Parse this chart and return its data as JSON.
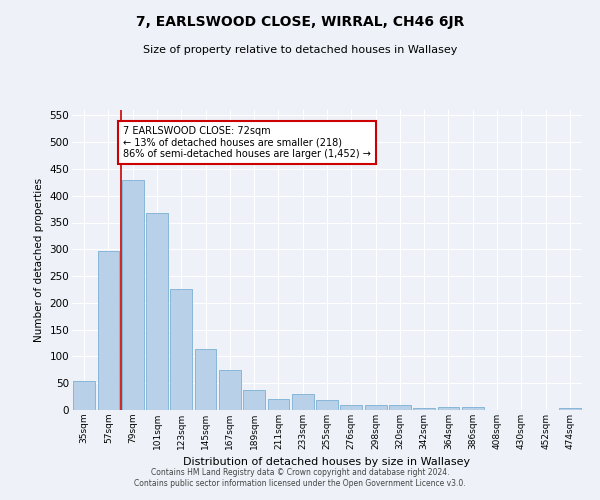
{
  "title": "7, EARLSWOOD CLOSE, WIRRAL, CH46 6JR",
  "subtitle": "Size of property relative to detached houses in Wallasey",
  "xlabel": "Distribution of detached houses by size in Wallasey",
  "ylabel": "Number of detached properties",
  "bar_color": "#b8d0e8",
  "bar_edge_color": "#7aafd4",
  "background_color": "#eef2f8",
  "grid_color": "#ffffff",
  "categories": [
    "35sqm",
    "57sqm",
    "79sqm",
    "101sqm",
    "123sqm",
    "145sqm",
    "167sqm",
    "189sqm",
    "211sqm",
    "233sqm",
    "255sqm",
    "276sqm",
    "298sqm",
    "320sqm",
    "342sqm",
    "364sqm",
    "386sqm",
    "408sqm",
    "430sqm",
    "452sqm",
    "474sqm"
  ],
  "values": [
    55,
    296,
    430,
    368,
    225,
    113,
    75,
    38,
    20,
    29,
    18,
    10,
    10,
    10,
    4,
    5,
    5,
    0,
    0,
    0,
    4
  ],
  "property_line_color": "#cc0000",
  "annotation_text": "7 EARLSWOOD CLOSE: 72sqm\n← 13% of detached houses are smaller (218)\n86% of semi-detached houses are larger (1,452) →",
  "annotation_box_color": "#ffffff",
  "annotation_box_edge_color": "#cc0000",
  "footer_line1": "Contains HM Land Registry data © Crown copyright and database right 2024.",
  "footer_line2": "Contains public sector information licensed under the Open Government Licence v3.0.",
  "ylim": [
    0,
    560
  ],
  "yticks": [
    0,
    50,
    100,
    150,
    200,
    250,
    300,
    350,
    400,
    450,
    500,
    550
  ]
}
